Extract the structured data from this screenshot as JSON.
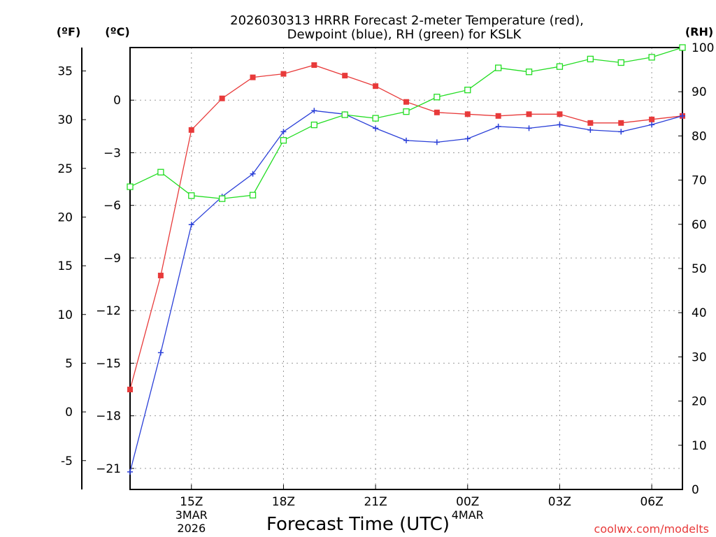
{
  "chart_data": {
    "type": "line",
    "title_line1": "2026030313 HRRR Forecast 2-meter Temperature (red),",
    "title_line2": "Dewpoint (blue), RH (green) for KSLK",
    "xlabel": "Forecast Time (UTC)",
    "watermark": "coolwx.com/modelts",
    "unit_labels": {
      "fahrenheit": "(ºF)",
      "celsius": "(ºC)",
      "rh": "(RH)"
    },
    "x_hours": [
      13,
      14,
      15,
      16,
      17,
      18,
      19,
      20,
      21,
      22,
      23,
      24,
      25,
      26,
      27,
      28,
      29,
      30,
      31
    ],
    "x_ticks": [
      {
        "hour": 15,
        "label": "15Z",
        "sub1": "3MAR",
        "sub2": "2026"
      },
      {
        "hour": 18,
        "label": "18Z",
        "sub1": "",
        "sub2": ""
      },
      {
        "hour": 21,
        "label": "21Z",
        "sub1": "",
        "sub2": ""
      },
      {
        "hour": 24,
        "label": "00Z",
        "sub1": "4MAR",
        "sub2": ""
      },
      {
        "hour": 27,
        "label": "03Z",
        "sub1": "",
        "sub2": ""
      },
      {
        "hour": 30,
        "label": "06Z",
        "sub1": "",
        "sub2": ""
      }
    ],
    "celsius_range": [
      -22.2,
      3.0
    ],
    "celsius_ticks": [
      0,
      -3,
      -6,
      -9,
      -12,
      -15,
      -18,
      -21
    ],
    "fahrenheit_ticks": [
      35,
      30,
      25,
      20,
      15,
      10,
      5,
      0,
      -5
    ],
    "rh_range": [
      0,
      100
    ],
    "rh_ticks": [
      0,
      10,
      20,
      30,
      40,
      50,
      60,
      70,
      80,
      90,
      100
    ],
    "colors": {
      "temperature": "#e83a3a",
      "dewpoint": "#2a3fd8",
      "rh": "#22dd22",
      "grid": "#999999"
    },
    "series": [
      {
        "name": "Temperature",
        "axis": "celsius",
        "marker": "square-filled",
        "values": [
          -16.5,
          -10.0,
          -1.7,
          0.1,
          1.3,
          1.5,
          2.0,
          1.4,
          0.8,
          -0.1,
          -0.7,
          -0.8,
          -0.9,
          -0.8,
          -0.8,
          -1.3,
          -1.3,
          -1.1,
          -0.9
        ]
      },
      {
        "name": "Dewpoint",
        "axis": "celsius",
        "marker": "plus",
        "values": [
          -21.2,
          -14.4,
          -7.1,
          -5.5,
          -4.2,
          -1.8,
          -0.6,
          -0.8,
          -1.6,
          -2.3,
          -2.4,
          -2.2,
          -1.5,
          -1.6,
          -1.4,
          -1.7,
          -1.8,
          -1.4,
          -0.9
        ]
      },
      {
        "name": "RH",
        "axis": "rh",
        "marker": "square-open",
        "values": [
          68.5,
          71.8,
          66.5,
          65.8,
          66.6,
          79.0,
          82.5,
          84.8,
          84.0,
          85.5,
          88.8,
          90.4,
          95.4,
          94.5,
          95.7,
          97.4,
          96.6,
          97.8,
          100.0
        ]
      }
    ]
  }
}
